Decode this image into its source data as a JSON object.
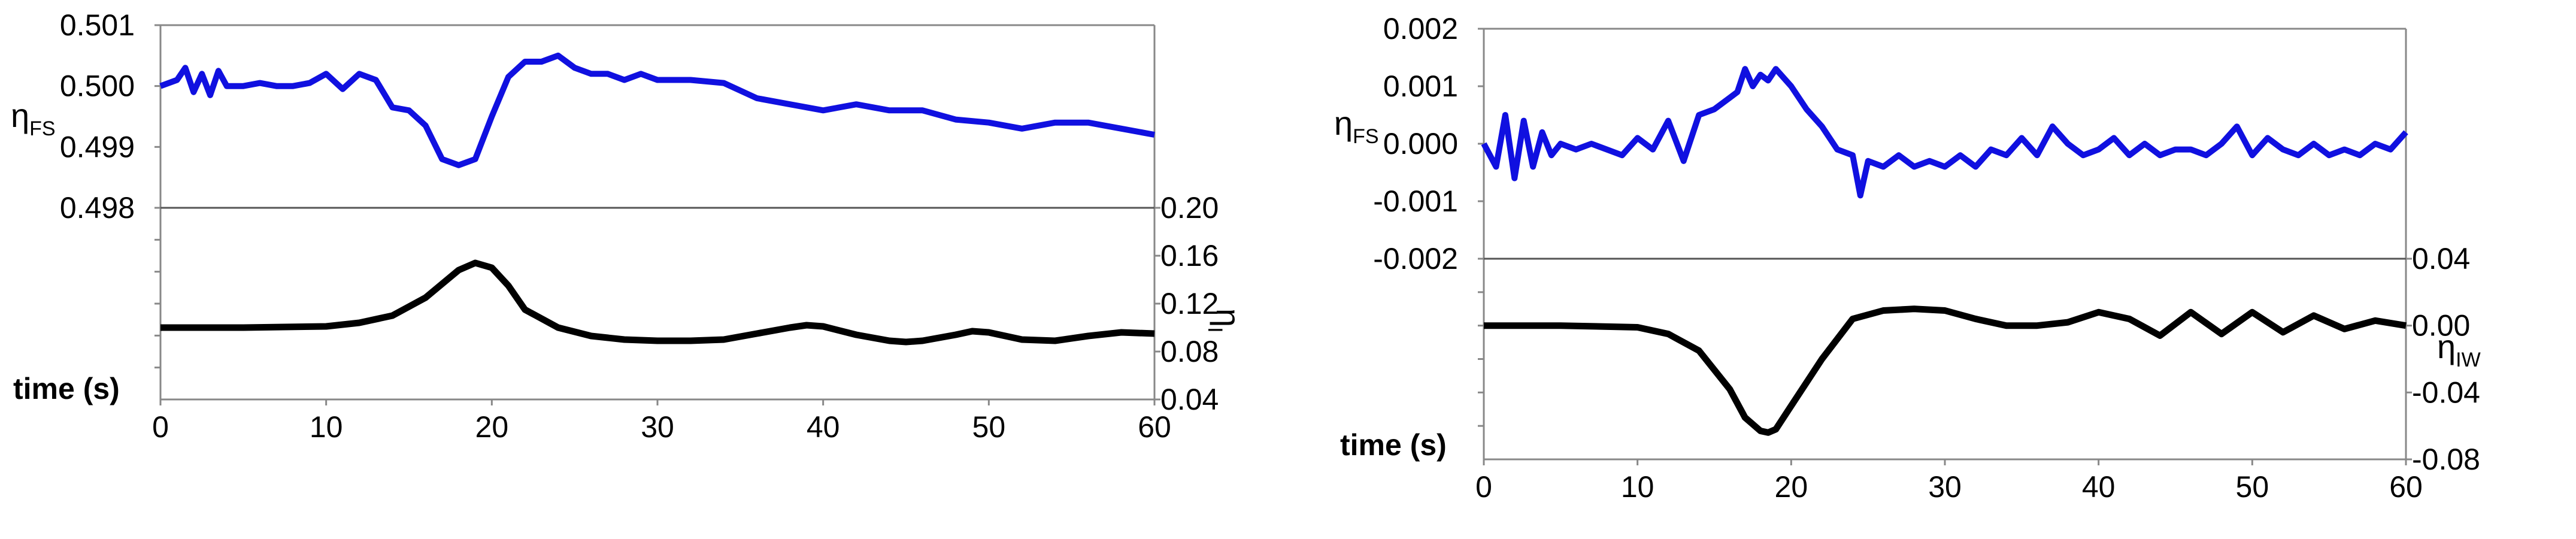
{
  "chart_data": [
    {
      "type": "line",
      "x_axis": {
        "label": "time (s)",
        "range": [
          0,
          60
        ],
        "ticks": [
          "0",
          "10",
          "20",
          "30",
          "40",
          "50",
          "60"
        ]
      },
      "top_panel": {
        "ylabel": {
          "symbol": "η",
          "sub": "FS"
        },
        "range": [
          0.498,
          0.501
        ],
        "ticks": [
          "0.498",
          "0.499",
          "0.500",
          "0.501"
        ],
        "color": "#1010e0",
        "x": [
          0,
          1,
          1.5,
          2,
          2.5,
          3,
          3.5,
          4,
          5,
          6,
          7,
          8,
          9,
          10,
          11,
          12,
          13,
          14,
          15,
          16,
          17,
          18,
          19,
          20,
          21,
          22,
          23,
          24,
          25,
          26,
          27,
          28,
          29,
          30,
          32,
          34,
          36,
          38,
          40,
          42,
          44,
          46,
          48,
          50,
          52,
          54,
          56,
          58,
          60
        ],
        "y": [
          0.5,
          0.5001,
          0.5003,
          0.4999,
          0.5002,
          0.49985,
          0.50025,
          0.5,
          0.5,
          0.50005,
          0.5,
          0.5,
          0.50005,
          0.5002,
          0.49995,
          0.5002,
          0.5001,
          0.49965,
          0.4996,
          0.49935,
          0.4988,
          0.4987,
          0.4988,
          0.4995,
          0.50015,
          0.5004,
          0.5004,
          0.5005,
          0.5003,
          0.5002,
          0.5002,
          0.5001,
          0.5002,
          0.5001,
          0.5001,
          0.50005,
          0.4998,
          0.4997,
          0.4996,
          0.4997,
          0.4996,
          0.4996,
          0.49945,
          0.4994,
          0.4993,
          0.4994,
          0.4994,
          0.4993,
          0.4992
        ]
      },
      "bottom_panel": {
        "ylabel": {
          "symbol": "η",
          "sub": "I"
        },
        "range": [
          0.04,
          0.2
        ],
        "ticks": [
          "0.04",
          "0.08",
          "0.12",
          "0.16",
          "0.20"
        ],
        "color": "#000000",
        "x": [
          0,
          5,
          10,
          12,
          14,
          16,
          18,
          19,
          20,
          21,
          22,
          24,
          26,
          28,
          30,
          32,
          34,
          36,
          38,
          39,
          40,
          42,
          44,
          45,
          46,
          48,
          49,
          50,
          52,
          54,
          56,
          58,
          60
        ],
        "y": [
          0.1,
          0.1,
          0.101,
          0.104,
          0.11,
          0.125,
          0.148,
          0.154,
          0.15,
          0.135,
          0.115,
          0.1,
          0.093,
          0.09,
          0.089,
          0.089,
          0.09,
          0.095,
          0.1,
          0.102,
          0.101,
          0.094,
          0.089,
          0.088,
          0.089,
          0.094,
          0.097,
          0.096,
          0.09,
          0.089,
          0.093,
          0.096,
          0.095
        ]
      }
    },
    {
      "type": "line",
      "x_axis": {
        "label": "time (s)",
        "range": [
          0,
          60
        ],
        "ticks": [
          "0",
          "10",
          "20",
          "30",
          "40",
          "50",
          "60"
        ]
      },
      "top_panel": {
        "ylabel": {
          "symbol": "η",
          "sub": "FS"
        },
        "range": [
          -0.002,
          0.002
        ],
        "ticks": [
          "-0.002",
          "-0.001",
          "0.000",
          "0.001",
          "0.002"
        ],
        "color": "#1010e0",
        "x": [
          0,
          0.8,
          1.4,
          2,
          2.6,
          3.2,
          3.8,
          4.4,
          5,
          6,
          7,
          8,
          9,
          10,
          11,
          12,
          13,
          14,
          15,
          16,
          16.5,
          17,
          17.5,
          18,
          18.5,
          19,
          20,
          21,
          22,
          23,
          24,
          24.5,
          25,
          26,
          27,
          28,
          29,
          30,
          31,
          32,
          33,
          34,
          35,
          36,
          37,
          38,
          39,
          40,
          41,
          42,
          43,
          44,
          45,
          46,
          47,
          48,
          49,
          50,
          51,
          52,
          53,
          54,
          55,
          56,
          57,
          58,
          59,
          60
        ],
        "y": [
          0.0,
          -0.0004,
          0.0005,
          -0.0006,
          0.0004,
          -0.0004,
          0.0002,
          -0.0002,
          0.0,
          -0.0001,
          0.0,
          -0.0001,
          -0.0002,
          0.0001,
          -0.0001,
          0.0004,
          -0.0003,
          0.0005,
          0.0006,
          0.0008,
          0.0009,
          0.0013,
          0.001,
          0.0012,
          0.0011,
          0.0013,
          0.001,
          0.0006,
          0.0003,
          -0.0001,
          -0.0002,
          -0.0009,
          -0.0003,
          -0.0004,
          -0.0002,
          -0.0004,
          -0.0003,
          -0.0004,
          -0.0002,
          -0.0004,
          -0.0001,
          -0.0002,
          0.0001,
          -0.0002,
          0.0003,
          0.0,
          -0.0002,
          -0.0001,
          0.0001,
          -0.0002,
          0.0,
          -0.0002,
          -0.0001,
          -0.0001,
          -0.0002,
          0.0,
          0.0003,
          -0.0002,
          0.0001,
          -0.0001,
          -0.0002,
          0.0,
          -0.0002,
          -0.0001,
          -0.0002,
          0.0,
          -0.0001,
          0.0002
        ]
      },
      "bottom_panel": {
        "ylabel": {
          "symbol": "η",
          "sub": "IW"
        },
        "range": [
          -0.08,
          0.04
        ],
        "ticks": [
          "-0.08",
          "-0.04",
          "0.00",
          "0.04"
        ],
        "color": "#000000",
        "x": [
          0,
          5,
          10,
          12,
          14,
          16,
          17,
          18,
          18.5,
          19,
          20,
          22,
          24,
          26,
          28,
          30,
          32,
          34,
          36,
          38,
          40,
          42,
          44,
          46,
          48,
          50,
          52,
          54,
          56,
          58,
          60
        ],
        "y": [
          0.0,
          0.0,
          -0.001,
          -0.005,
          -0.015,
          -0.038,
          -0.055,
          -0.063,
          -0.064,
          -0.062,
          -0.048,
          -0.02,
          0.004,
          0.009,
          0.01,
          0.009,
          0.004,
          0.0,
          0.0,
          0.002,
          0.008,
          0.004,
          -0.006,
          0.008,
          -0.005,
          0.008,
          -0.004,
          0.006,
          -0.002,
          0.003,
          0.0
        ]
      }
    }
  ]
}
